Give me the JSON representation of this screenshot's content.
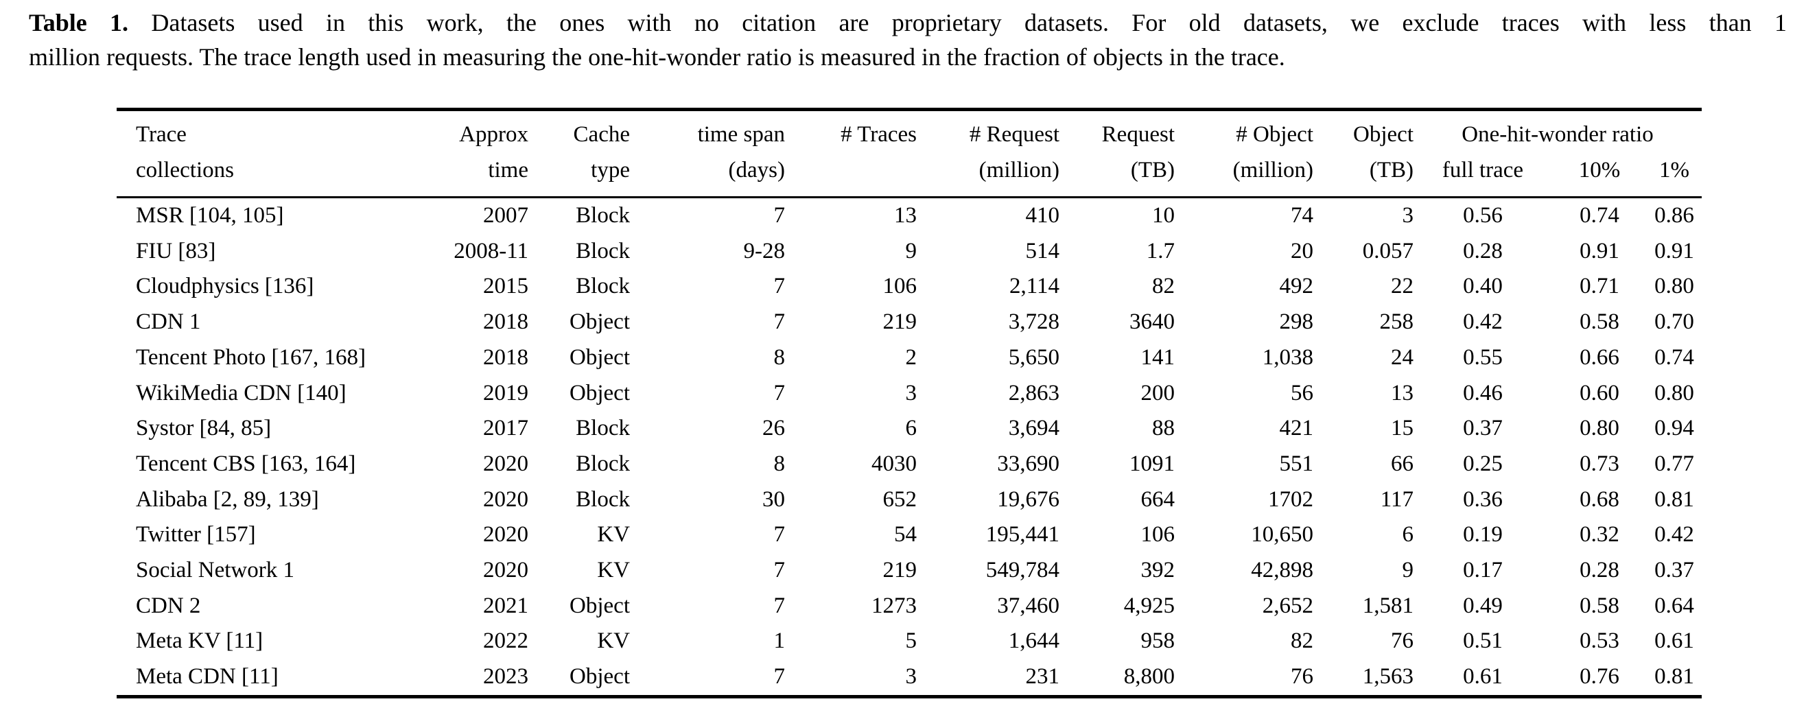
{
  "caption": {
    "label": "Table 1.",
    "line1": "Datasets used in this work, the ones with no citation are proprietary datasets. For old datasets, we exclude traces with less than 1",
    "line2": "million requests. The trace length used in measuring the one-hit-wonder ratio is measured in the fraction of objects in the trace."
  },
  "table": {
    "header_row1": {
      "trace": "Trace",
      "approx": "Approx",
      "cache": "Cache",
      "timespan": "time span",
      "traces": "# Traces",
      "request_count": "# Request",
      "request_size": "Request",
      "object_count": "# Object",
      "object_size": "Object",
      "one_hit_wonder": "One-hit-wonder ratio"
    },
    "header_row2": {
      "trace": "collections",
      "approx": "time",
      "cache": "type",
      "timespan": "(days)",
      "traces": "",
      "request_count": "(million)",
      "request_size": "(TB)",
      "object_count": "(million)",
      "object_size": "(TB)",
      "full_trace": "full trace",
      "pct10": "10%",
      "pct1": "1%"
    },
    "rows": [
      [
        "MSR [104, 105]",
        "2007",
        "Block",
        "7",
        "13",
        "410",
        "10",
        "74",
        "3",
        "0.56",
        "0.74",
        "0.86"
      ],
      [
        "FIU [83]",
        "2008-11",
        "Block",
        "9-28",
        "9",
        "514",
        "1.7",
        "20",
        "0.057",
        "0.28",
        "0.91",
        "0.91"
      ],
      [
        "Cloudphysics [136]",
        "2015",
        "Block",
        "7",
        "106",
        "2,114",
        "82",
        "492",
        "22",
        "0.40",
        "0.71",
        "0.80"
      ],
      [
        "CDN 1",
        "2018",
        "Object",
        "7",
        "219",
        "3,728",
        "3640",
        "298",
        "258",
        "0.42",
        "0.58",
        "0.70"
      ],
      [
        "Tencent Photo [167, 168]",
        "2018",
        "Object",
        "8",
        "2",
        "5,650",
        "141",
        "1,038",
        "24",
        "0.55",
        "0.66",
        "0.74"
      ],
      [
        "WikiMedia CDN [140]",
        "2019",
        "Object",
        "7",
        "3",
        "2,863",
        "200",
        "56",
        "13",
        "0.46",
        "0.60",
        "0.80"
      ],
      [
        "Systor [84, 85]",
        "2017",
        "Block",
        "26",
        "6",
        "3,694",
        "88",
        "421",
        "15",
        "0.37",
        "0.80",
        "0.94"
      ],
      [
        "Tencent CBS [163, 164]",
        "2020",
        "Block",
        "8",
        "4030",
        "33,690",
        "1091",
        "551",
        "66",
        "0.25",
        "0.73",
        "0.77"
      ],
      [
        "Alibaba [2, 89, 139]",
        "2020",
        "Block",
        "30",
        "652",
        "19,676",
        "664",
        "1702",
        "117",
        "0.36",
        "0.68",
        "0.81"
      ],
      [
        "Twitter [157]",
        "2020",
        "KV",
        "7",
        "54",
        "195,441",
        "106",
        "10,650",
        "6",
        "0.19",
        "0.32",
        "0.42"
      ],
      [
        "Social Network 1",
        "2020",
        "KV",
        "7",
        "219",
        "549,784",
        "392",
        "42,898",
        "9",
        "0.17",
        "0.28",
        "0.37"
      ],
      [
        "CDN 2",
        "2021",
        "Object",
        "7",
        "1273",
        "37,460",
        "4,925",
        "2,652",
        "1,581",
        "0.49",
        "0.58",
        "0.64"
      ],
      [
        "Meta KV [11]",
        "2022",
        "KV",
        "1",
        "5",
        "1,644",
        "958",
        "82",
        "76",
        "0.51",
        "0.53",
        "0.61"
      ],
      [
        "Meta CDN [11]",
        "2023",
        "Object",
        "7",
        "3",
        "231",
        "8,800",
        "76",
        "1,563",
        "0.61",
        "0.76",
        "0.81"
      ]
    ]
  }
}
